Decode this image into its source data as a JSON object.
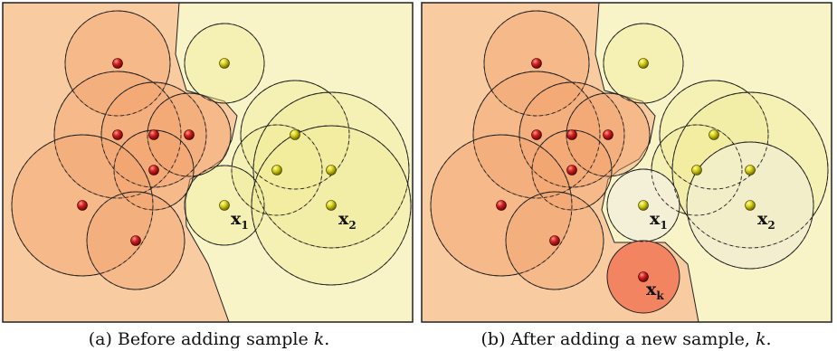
{
  "colors": {
    "orange_region": "#f9cba1",
    "yellow_region": "#f8f4c8",
    "orange_circle": "#f2a56e",
    "yellow_circle": "#f1ec9a",
    "x1_circle_b": "#f3efd8",
    "x2_circle_b": "#f1eecf",
    "xk_circle": "#f38462",
    "red_point": "#c0181a",
    "yellow_point": "#d4cc11",
    "panel_border": "#222222"
  },
  "panels": [
    {
      "caption_prefix": "(a) Before adding sample ",
      "caption_var": "k",
      "caption_suffix": ".",
      "labels": [
        {
          "main": "x",
          "sub": "1"
        },
        {
          "main": "x",
          "sub": "2"
        }
      ]
    },
    {
      "caption_prefix": "(b) After adding a new sample, ",
      "caption_var": "k",
      "caption_suffix": ".",
      "labels": [
        {
          "main": "x",
          "sub": "1"
        },
        {
          "main": "x",
          "sub": "2"
        },
        {
          "main": "x",
          "sub": "k"
        }
      ]
    }
  ]
}
